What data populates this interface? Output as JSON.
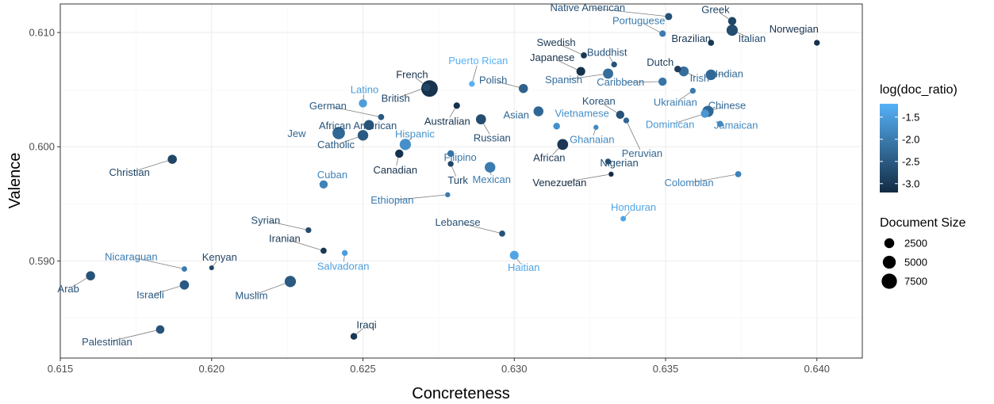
{
  "chart_data": {
    "type": "scatter",
    "xlabel": "Concreteness",
    "ylabel": "Valence",
    "xlim": [
      0.615,
      0.6415
    ],
    "ylim": [
      0.5815,
      0.6125
    ],
    "x_ticks": [
      0.615,
      0.62,
      0.625,
      0.63,
      0.635,
      0.64
    ],
    "x_tick_labels": [
      "0.615",
      "0.620",
      "0.625",
      "0.630",
      "0.635",
      "0.640"
    ],
    "y_ticks": [
      0.59,
      0.6,
      0.61
    ],
    "y_tick_labels": [
      "0.590",
      "0.600",
      "0.610"
    ],
    "grid": true,
    "color_legend": {
      "title": "log(doc_ratio)",
      "ticks": [
        -1.5,
        -2.0,
        -2.5,
        -3.0
      ],
      "tick_labels": [
        "-1.5",
        "-2.0",
        "-2.5",
        "-3.0"
      ],
      "range": [
        -3.2,
        -1.2
      ],
      "low_color": "#132b43",
      "high_color": "#56b1f7"
    },
    "size_legend": {
      "title": "Document Size",
      "values": [
        2500,
        5000,
        7500
      ],
      "labels": [
        "2500",
        "5000",
        "7500"
      ]
    },
    "legend_placement": "right",
    "points": [
      {
        "label": "Native American",
        "x": 0.6351,
        "y": 0.6114,
        "log_ratio": -2.6,
        "size": 1000
      },
      {
        "label": "Greek",
        "x": 0.6372,
        "y": 0.611,
        "log_ratio": -2.8,
        "size": 1500
      },
      {
        "label": "Portuguese",
        "x": 0.6349,
        "y": 0.6099,
        "log_ratio": -2.0,
        "size": 700
      },
      {
        "label": "Italian",
        "x": 0.6372,
        "y": 0.6102,
        "log_ratio": -2.7,
        "size": 3500
      },
      {
        "label": "Norwegian",
        "x": 0.64,
        "y": 0.6091,
        "log_ratio": -3.1,
        "size": 500
      },
      {
        "label": "Swedish",
        "x": 0.6323,
        "y": 0.608,
        "log_ratio": -3.0,
        "size": 600
      },
      {
        "label": "Brazilian",
        "x": 0.6365,
        "y": 0.6091,
        "log_ratio": -3.0,
        "size": 600
      },
      {
        "label": "Buddhist",
        "x": 0.6333,
        "y": 0.6072,
        "log_ratio": -2.6,
        "size": 500
      },
      {
        "label": "Puerto Rican",
        "x": 0.6286,
        "y": 0.6055,
        "log_ratio": -1.2,
        "size": 500
      },
      {
        "label": "Japanese",
        "x": 0.6322,
        "y": 0.6066,
        "log_ratio": -3.1,
        "size": 1800
      },
      {
        "label": "French",
        "x": 0.6272,
        "y": 0.6051,
        "log_ratio": -3.1,
        "size": 9000
      },
      {
        "label": "Dutch",
        "x": 0.6354,
        "y": 0.6068,
        "log_ratio": -2.9,
        "size": 800
      },
      {
        "label": "Spanish",
        "x": 0.6331,
        "y": 0.6064,
        "log_ratio": -2.2,
        "size": 2700
      },
      {
        "label": "Indian",
        "x": 0.6365,
        "y": 0.6063,
        "log_ratio": -2.3,
        "size": 3000
      },
      {
        "label": "Polish",
        "x": 0.6303,
        "y": 0.6051,
        "log_ratio": -2.4,
        "size": 2000
      },
      {
        "label": "Caribbean",
        "x": 0.6349,
        "y": 0.6057,
        "log_ratio": -2.1,
        "size": 1500
      },
      {
        "label": "Irish",
        "x": 0.6356,
        "y": 0.6066,
        "log_ratio": -2.2,
        "size": 2500
      },
      {
        "label": "Latino",
        "x": 0.625,
        "y": 0.6038,
        "log_ratio": -1.5,
        "size": 1500
      },
      {
        "label": "British",
        "x": 0.6271,
        "y": 0.6052,
        "log_ratio": -2.8,
        "size": 1200
      },
      {
        "label": "Ukrainian",
        "x": 0.6359,
        "y": 0.6049,
        "log_ratio": -2.0,
        "size": 500
      },
      {
        "label": "Australian",
        "x": 0.6281,
        "y": 0.6036,
        "log_ratio": -3.1,
        "size": 700
      },
      {
        "label": "Asian",
        "x": 0.6308,
        "y": 0.6031,
        "log_ratio": -2.3,
        "size": 2500
      },
      {
        "label": "Chinese",
        "x": 0.6364,
        "y": 0.6031,
        "log_ratio": -2.3,
        "size": 3500
      },
      {
        "label": "Korean",
        "x": 0.6335,
        "y": 0.6028,
        "log_ratio": -2.6,
        "size": 1500
      },
      {
        "label": "German",
        "x": 0.6256,
        "y": 0.6026,
        "log_ratio": -2.5,
        "size": 600
      },
      {
        "label": "Russian",
        "x": 0.6289,
        "y": 0.6024,
        "log_ratio": -2.7,
        "size": 2600
      },
      {
        "label": "Vietnamese",
        "x": 0.6314,
        "y": 0.6018,
        "log_ratio": -1.7,
        "size": 800
      },
      {
        "label": "Dominican",
        "x": 0.6363,
        "y": 0.6029,
        "log_ratio": -1.6,
        "size": 1500
      },
      {
        "label": "African American",
        "x": 0.6252,
        "y": 0.6019,
        "log_ratio": -2.6,
        "size": 2600
      },
      {
        "label": "Jamaican",
        "x": 0.6368,
        "y": 0.602,
        "log_ratio": -1.8,
        "size": 600
      },
      {
        "label": "Ghanaian",
        "x": 0.6327,
        "y": 0.6017,
        "log_ratio": -1.8,
        "size": 300
      },
      {
        "label": "Peruvian",
        "x": 0.6337,
        "y": 0.6023,
        "log_ratio": -2.3,
        "size": 500
      },
      {
        "label": "Jew",
        "x": 0.6242,
        "y": 0.6012,
        "log_ratio": -2.3,
        "size": 4500
      },
      {
        "label": "Catholic",
        "x": 0.625,
        "y": 0.601,
        "log_ratio": -2.5,
        "size": 3000
      },
      {
        "label": "Hispanic",
        "x": 0.6264,
        "y": 0.6002,
        "log_ratio": -1.7,
        "size": 3500
      },
      {
        "label": "African",
        "x": 0.6316,
        "y": 0.6002,
        "log_ratio": -3.0,
        "size": 3200
      },
      {
        "label": "Canadian",
        "x": 0.6262,
        "y": 0.5994,
        "log_ratio": -3.1,
        "size": 1500
      },
      {
        "label": "Christian",
        "x": 0.6187,
        "y": 0.5989,
        "log_ratio": -2.8,
        "size": 2000
      },
      {
        "label": "Filipino",
        "x": 0.6279,
        "y": 0.5994,
        "log_ratio": -2.1,
        "size": 800
      },
      {
        "label": "Nigerian",
        "x": 0.6331,
        "y": 0.5987,
        "log_ratio": -2.7,
        "size": 500
      },
      {
        "label": "Turk",
        "x": 0.6279,
        "y": 0.5985,
        "log_ratio": -2.8,
        "size": 500
      },
      {
        "label": "Mexican",
        "x": 0.6292,
        "y": 0.5982,
        "log_ratio": -2.0,
        "size": 3000
      },
      {
        "label": "Venezuelan",
        "x": 0.6332,
        "y": 0.5976,
        "log_ratio": -3.2,
        "size": 300
      },
      {
        "label": "Colombian",
        "x": 0.6374,
        "y": 0.5976,
        "log_ratio": -1.9,
        "size": 600
      },
      {
        "label": "Cuban",
        "x": 0.6237,
        "y": 0.5967,
        "log_ratio": -1.9,
        "size": 1500
      },
      {
        "label": "Ethiopian",
        "x": 0.6278,
        "y": 0.5958,
        "log_ratio": -2.0,
        "size": 300
      },
      {
        "label": "Honduran",
        "x": 0.6336,
        "y": 0.5937,
        "log_ratio": -1.4,
        "size": 400
      },
      {
        "label": "Syrian",
        "x": 0.6232,
        "y": 0.5927,
        "log_ratio": -2.7,
        "size": 500
      },
      {
        "label": "Lebanese",
        "x": 0.6296,
        "y": 0.5924,
        "log_ratio": -2.6,
        "size": 600
      },
      {
        "label": "Iranian",
        "x": 0.6237,
        "y": 0.5909,
        "log_ratio": -3.0,
        "size": 600
      },
      {
        "label": "Salvadoran",
        "x": 0.6244,
        "y": 0.5907,
        "log_ratio": -1.5,
        "size": 500
      },
      {
        "label": "Haitian",
        "x": 0.63,
        "y": 0.5905,
        "log_ratio": -1.4,
        "size": 1800
      },
      {
        "label": "Nicaraguan",
        "x": 0.6191,
        "y": 0.5893,
        "log_ratio": -2.0,
        "size": 400
      },
      {
        "label": "Kenyan",
        "x": 0.62,
        "y": 0.5894,
        "log_ratio": -2.8,
        "size": 250
      },
      {
        "label": "Arab",
        "x": 0.616,
        "y": 0.5887,
        "log_ratio": -2.6,
        "size": 2000
      },
      {
        "label": "Muslim",
        "x": 0.6226,
        "y": 0.5882,
        "log_ratio": -2.5,
        "size": 3500
      },
      {
        "label": "Israeli",
        "x": 0.6191,
        "y": 0.5879,
        "log_ratio": -2.5,
        "size": 2100
      },
      {
        "label": "Palestinian",
        "x": 0.6183,
        "y": 0.584,
        "log_ratio": -2.6,
        "size": 1600
      },
      {
        "label": "Iraqi",
        "x": 0.6247,
        "y": 0.5834,
        "log_ratio": -3.0,
        "size": 800
      }
    ]
  }
}
